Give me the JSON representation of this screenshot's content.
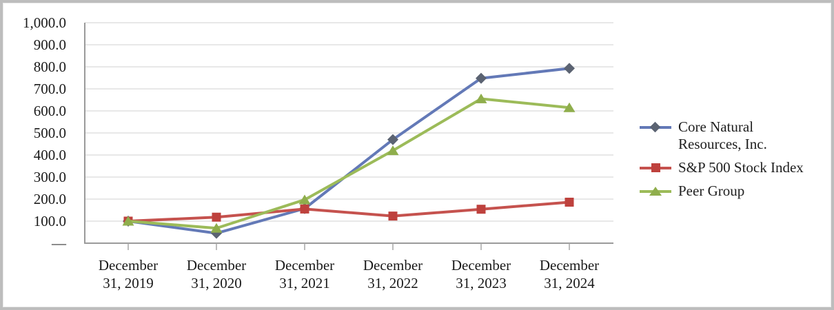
{
  "figure": {
    "background": "#ffffff",
    "border_color": "#bdbdbd"
  },
  "chart_data": {
    "type": "line",
    "title": "",
    "xlabel": "",
    "ylabel": "",
    "grid": "horizontal",
    "legend_position": "right",
    "categories": [
      "December 31, 2019",
      "December 31, 2020",
      "December 31, 2021",
      "December 31, 2022",
      "December 31, 2023",
      "December 31, 2024"
    ],
    "series": [
      {
        "name": "Core Natural Resources, Inc.",
        "marker": "diamond",
        "line_color": "#6379b7",
        "marker_color": "#5b6372",
        "values": [
          100.0,
          45.0,
          157.0,
          470.0,
          748.0,
          793.0
        ]
      },
      {
        "name": "S&P 500 Stock Index",
        "marker": "square",
        "line_color": "#c5524e",
        "marker_color": "#be413d",
        "values": [
          100.0,
          118.0,
          155.0,
          123.0,
          154.0,
          186.0
        ]
      },
      {
        "name": "Peer Group",
        "marker": "triangle",
        "line_color": "#9cbb59",
        "marker_color": "#8fae4c",
        "values": [
          100.0,
          68.0,
          197.0,
          420.0,
          655.0,
          615.0
        ]
      }
    ],
    "y_axis": {
      "min": 0,
      "max": 1000,
      "step": 100,
      "tick_labels": [
        "—",
        "100.0",
        "200.0",
        "300.0",
        "400.0",
        "500.0",
        "600.0",
        "700.0",
        "800.0",
        "900.0",
        "1,000.0"
      ]
    },
    "colors": {
      "gridline": "#d9d9d9",
      "axis": "#9a9a9a",
      "tick": "#a6a6a6",
      "text": "#1a1a1a"
    }
  }
}
